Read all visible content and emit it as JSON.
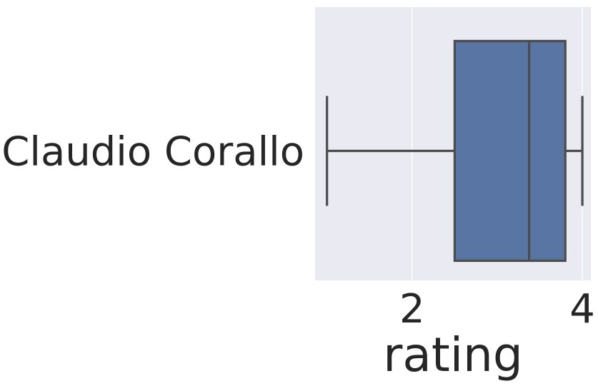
{
  "chart_data": {
    "type": "box",
    "orientation": "horizontal",
    "categories": [
      "Claudio Corallo"
    ],
    "series": [
      {
        "values": [
          {
            "category": "Claudio Corallo",
            "whisker_low": 1.0,
            "q1": 2.5,
            "median": 3.375,
            "q3": 3.8,
            "whisker_high": 4.0
          }
        ]
      }
    ],
    "xlabel": "rating",
    "ylabel": "",
    "xlim": [
      0.86,
      4.1
    ],
    "xticks": [
      2,
      4
    ],
    "grid": true,
    "legend": "none",
    "colors": {
      "plot_background": "#EAEAF2",
      "grid": "#FFFFFF",
      "box_fill": "#5875A4",
      "line": "#4C4C4C",
      "text": "#262626"
    }
  }
}
